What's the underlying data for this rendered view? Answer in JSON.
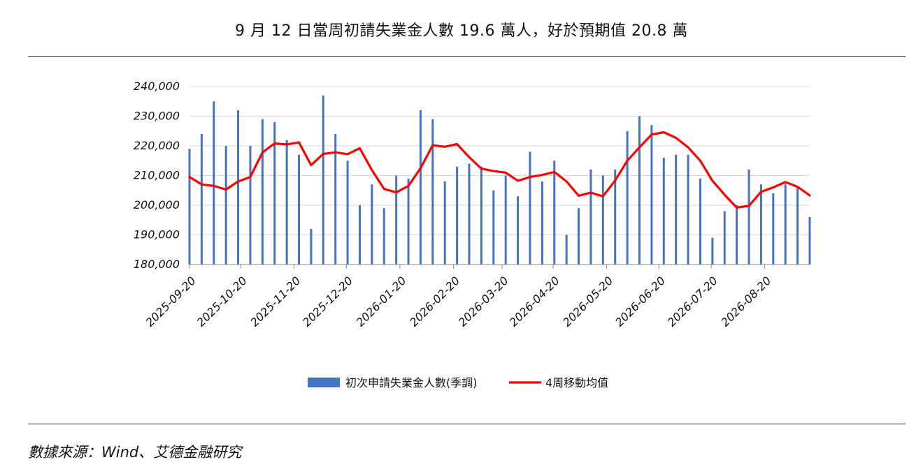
{
  "title": "9 月 12 日當周初請失業金人數 19.6 萬人，好於預期值 20.8 萬",
  "source": "數據來源：Wind、艾德金融研究",
  "colors": {
    "bar": "#4472C4",
    "line": "#FF0000",
    "grid": "#D9D9D9",
    "axis": "#888888"
  },
  "chart_data": {
    "type": "bar+line",
    "ylim": [
      180000,
      240000
    ],
    "y_ticks": [
      "180,000",
      "190,000",
      "200,000",
      "210,000",
      "220,000",
      "230,000",
      "240,000"
    ],
    "y_tick_values": [
      180000,
      190000,
      200000,
      210000,
      220000,
      230000,
      240000
    ],
    "x_tick_labels": [
      "2025-09-20",
      "2025-10-20",
      "2025-11-20",
      "2025-12-20",
      "2026-01-20",
      "2026-02-20",
      "2026-03-20",
      "2026-04-20",
      "2026-05-20",
      "2026-06-20",
      "2026-07-20",
      "2026-08-20"
    ],
    "grid": true,
    "legend_position": "bottom",
    "series": [
      {
        "name": "初次申請失業金人數(季調)",
        "type": "bar",
        "values": [
          219000,
          224000,
          235000,
          220000,
          232000,
          220000,
          229000,
          228000,
          222000,
          217000,
          192000,
          237000,
          224000,
          215000,
          200000,
          207000,
          199000,
          210000,
          209000,
          232000,
          229000,
          208000,
          213000,
          214000,
          213000,
          205000,
          210000,
          203000,
          218000,
          208000,
          215000,
          190000,
          199000,
          212000,
          210000,
          212000,
          225000,
          230000,
          227000,
          216000,
          217000,
          217000,
          209000,
          189000,
          198000,
          200000,
          212000,
          207000,
          204000,
          207000,
          206000,
          196000
        ]
      },
      {
        "name": "4周移動均值",
        "type": "line",
        "values": [
          209500,
          207000,
          206500,
          205300,
          208000,
          209500,
          217800,
          220800,
          220500,
          221200,
          213500,
          217300,
          217800,
          217200,
          219200,
          211800,
          205500,
          204300,
          206500,
          212500,
          220200,
          219700,
          220600,
          216200,
          212300,
          211500,
          211000,
          208200,
          209500,
          210200,
          211200,
          208000,
          203200,
          204200,
          203000,
          208300,
          215000,
          219500,
          223800,
          224600,
          222700,
          219500,
          215000,
          208200,
          203500,
          199200,
          199800,
          204500,
          206000,
          207800,
          206200,
          203300
        ]
      }
    ]
  }
}
